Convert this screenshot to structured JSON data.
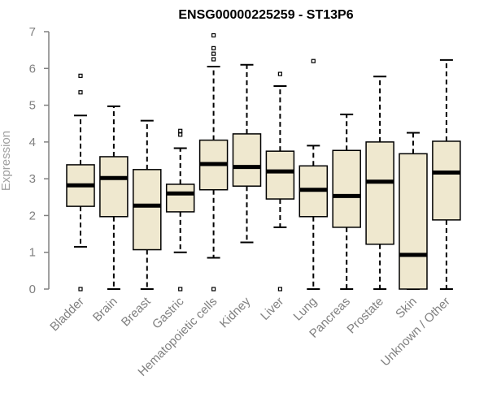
{
  "chart_data": {
    "type": "boxplot",
    "title": "ENSG00000225259 - ST13P6",
    "ylabel": "Expression",
    "xlabel": "",
    "ylim": [
      0,
      7
    ],
    "yticks": [
      "0",
      "1",
      "2",
      "3",
      "4",
      "5",
      "6",
      "7"
    ],
    "grid": false,
    "legend": "none",
    "box_fill": "#efe8cf",
    "box_stroke": "#000000",
    "axis_color": "#808080",
    "categories": [
      "Bladder",
      "Brain",
      "Breast",
      "Gastric",
      "Hematopoietic cells",
      "Kidney",
      "Liver",
      "Lung",
      "Pancreas",
      "Prostate",
      "Skin",
      "Unknown / Other"
    ],
    "boxes": [
      {
        "category": "Bladder",
        "whisker_low": 1.15,
        "q1": 2.25,
        "median": 2.82,
        "q3": 3.38,
        "whisker_high": 4.72,
        "outliers": [
          0.0,
          5.35,
          5.8
        ]
      },
      {
        "category": "Brain",
        "whisker_low": 0.0,
        "q1": 1.97,
        "median": 3.02,
        "q3": 3.6,
        "whisker_high": 4.97,
        "outliers": []
      },
      {
        "category": "Breast",
        "whisker_low": 0.0,
        "q1": 1.07,
        "median": 2.27,
        "q3": 3.25,
        "whisker_high": 4.58,
        "outliers": []
      },
      {
        "category": "Gastric",
        "whisker_low": 1.0,
        "q1": 2.1,
        "median": 2.6,
        "q3": 2.85,
        "whisker_high": 3.83,
        "outliers": [
          0.0,
          4.2,
          4.3
        ]
      },
      {
        "category": "Hematopoietic cells",
        "whisker_low": 0.85,
        "q1": 2.7,
        "median": 3.4,
        "q3": 4.05,
        "whisker_high": 6.05,
        "outliers": [
          0.0,
          6.25,
          6.4,
          6.55,
          6.9
        ]
      },
      {
        "category": "Kidney",
        "whisker_low": 1.27,
        "q1": 2.8,
        "median": 3.32,
        "q3": 4.22,
        "whisker_high": 6.1,
        "outliers": []
      },
      {
        "category": "Liver",
        "whisker_low": 1.68,
        "q1": 2.45,
        "median": 3.2,
        "q3": 3.75,
        "whisker_high": 5.52,
        "outliers": [
          0.0,
          5.85
        ]
      },
      {
        "category": "Lung",
        "whisker_low": 0.0,
        "q1": 1.97,
        "median": 2.7,
        "q3": 3.35,
        "whisker_high": 3.9,
        "outliers": [
          6.2
        ]
      },
      {
        "category": "Pancreas",
        "whisker_low": 0.0,
        "q1": 1.68,
        "median": 2.53,
        "q3": 3.77,
        "whisker_high": 4.75,
        "outliers": []
      },
      {
        "category": "Prostate",
        "whisker_low": 0.0,
        "q1": 1.22,
        "median": 2.92,
        "q3": 4.0,
        "whisker_high": 5.78,
        "outliers": []
      },
      {
        "category": "Skin",
        "whisker_low": 0.0,
        "q1": 0.0,
        "median": 0.93,
        "q3": 3.68,
        "whisker_high": 4.25,
        "outliers": []
      },
      {
        "category": "Unknown / Other",
        "whisker_low": 0.0,
        "q1": 1.88,
        "median": 3.17,
        "q3": 4.02,
        "whisker_high": 6.23,
        "outliers": []
      }
    ]
  }
}
